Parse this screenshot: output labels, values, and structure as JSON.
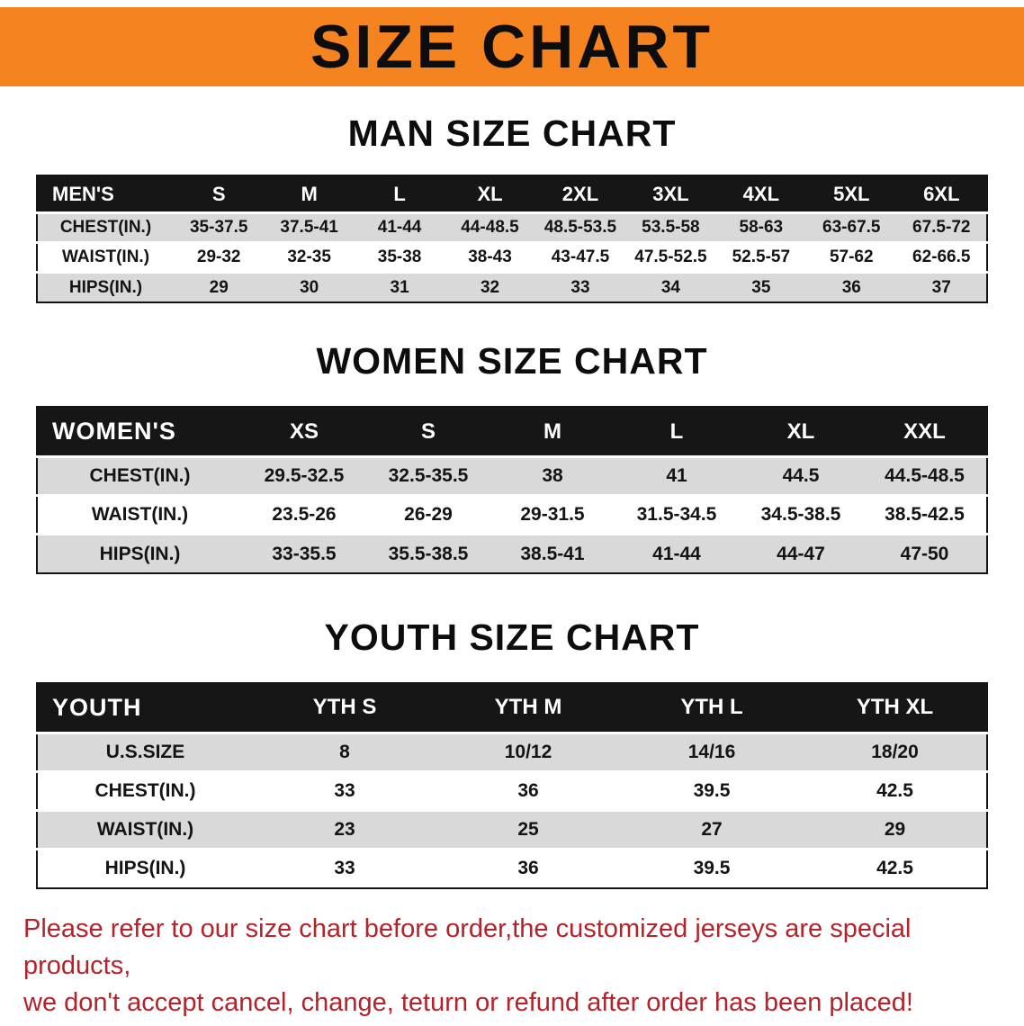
{
  "banner": {
    "title": "SIZE CHART"
  },
  "colors": {
    "banner_bg": "#f5831f",
    "table_header_bg": "#161616",
    "row_stripe": "#d9d9d9",
    "disclaimer_text": "#b5222a"
  },
  "sections": [
    {
      "id": "men",
      "heading": "MAN SIZE CHART",
      "table": {
        "header": [
          "MEN'S",
          "S",
          "M",
          "L",
          "XL",
          "2XL",
          "3XL",
          "4XL",
          "5XL",
          "6XL"
        ],
        "rows": [
          [
            "CHEST(IN.)",
            "35-37.5",
            "37.5-41",
            "41-44",
            "44-48.5",
            "48.5-53.5",
            "53.5-58",
            "58-63",
            "63-67.5",
            "67.5-72"
          ],
          [
            "WAIST(IN.)",
            "29-32",
            "32-35",
            "35-38",
            "38-43",
            "43-47.5",
            "47.5-52.5",
            "52.5-57",
            "57-62",
            "62-66.5"
          ],
          [
            "HIPS(IN.)",
            "29",
            "30",
            "31",
            "32",
            "33",
            "34",
            "35",
            "36",
            "37"
          ]
        ]
      }
    },
    {
      "id": "women",
      "heading": "WOMEN SIZE CHART",
      "table": {
        "header": [
          "WOMEN'S",
          "XS",
          "S",
          "M",
          "L",
          "XL",
          "XXL"
        ],
        "rows": [
          [
            "CHEST(IN.)",
            "29.5-32.5",
            "32.5-35.5",
            "38",
            "41",
            "44.5",
            "44.5-48.5"
          ],
          [
            "WAIST(IN.)",
            "23.5-26",
            "26-29",
            "29-31.5",
            "31.5-34.5",
            "34.5-38.5",
            "38.5-42.5"
          ],
          [
            "HIPS(IN.)",
            "33-35.5",
            "35.5-38.5",
            "38.5-41",
            "41-44",
            "44-47",
            "47-50"
          ]
        ]
      }
    },
    {
      "id": "youth",
      "heading": "YOUTH SIZE CHART",
      "table": {
        "header": [
          "YOUTH",
          "YTH S",
          "YTH M",
          "YTH L",
          "YTH XL"
        ],
        "rows": [
          [
            "U.S.SIZE",
            "8",
            "10/12",
            "14/16",
            "18/20"
          ],
          [
            "CHEST(IN.)",
            "33",
            "36",
            "39.5",
            "42.5"
          ],
          [
            "WAIST(IN.)",
            "23",
            "25",
            "27",
            "29"
          ],
          [
            "HIPS(IN.)",
            "33",
            "36",
            "39.5",
            "42.5"
          ]
        ]
      }
    }
  ],
  "disclaimer": {
    "line1": "Please refer to our size chart before order,the customized jerseys are special products,",
    "line2": "we don't accept cancel, change, teturn or refund after order has been placed!"
  }
}
